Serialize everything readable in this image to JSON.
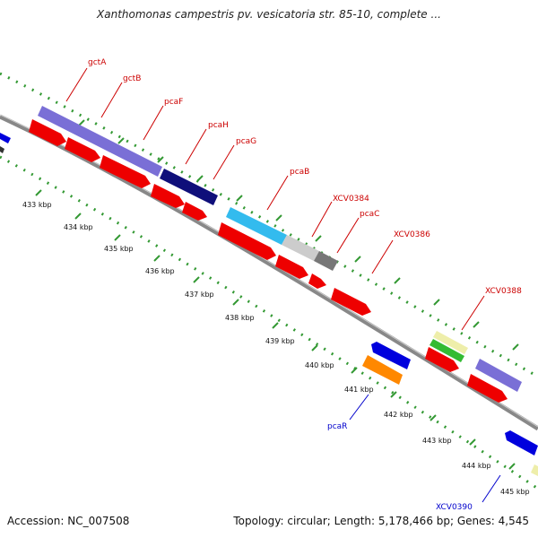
{
  "title": "Xanthomonas campestris pv. vesicatoria str. 85-10, complete ...",
  "accession": "Accession: NC_007508",
  "summary": "Topology: circular; Length: 5,178,466 bp; Genes: 4,545",
  "scale_labels": [
    "433 kbp",
    "434 kbp",
    "435 kbp",
    "436 kbp",
    "437 kbp",
    "438 kbp",
    "439 kbp",
    "440 kbp",
    "441 kbp",
    "442 kbp",
    "443 kbp",
    "444 kbp",
    "445 kbp"
  ],
  "gene_labels": [
    {
      "text": "gctA",
      "strand": "forward"
    },
    {
      "text": "gctB",
      "strand": "forward"
    },
    {
      "text": "pcaF",
      "strand": "forward"
    },
    {
      "text": "pcaH",
      "strand": "forward"
    },
    {
      "text": "pcaG",
      "strand": "forward"
    },
    {
      "text": "pcaB",
      "strand": "forward"
    },
    {
      "text": "XCV0384",
      "strand": "forward"
    },
    {
      "text": "pcaC",
      "strand": "forward"
    },
    {
      "text": "XCV0386",
      "strand": "forward"
    },
    {
      "text": "XCV0388",
      "strand": "forward"
    },
    {
      "text": "pcaR",
      "strand": "reverse"
    },
    {
      "text": "XCV0390",
      "strand": "reverse"
    }
  ],
  "colors": {
    "forward_label": "#cc0000",
    "reverse_label": "#0000cc",
    "backbone": "#888888",
    "tick": "#339933",
    "cds": "#ee0000",
    "gctA_gctB": "#7a6fd6",
    "pcaH_pcaG": "#0f0f7a",
    "pcaB": "#33bbee",
    "XCV0384": "#cccccc",
    "pcaC": "#777777",
    "XCV0388_a": "#eeeeaa",
    "XCV0388_b": "#33bb33",
    "pcaR": "#ff8800",
    "reverse_gene": "#0000dd"
  }
}
